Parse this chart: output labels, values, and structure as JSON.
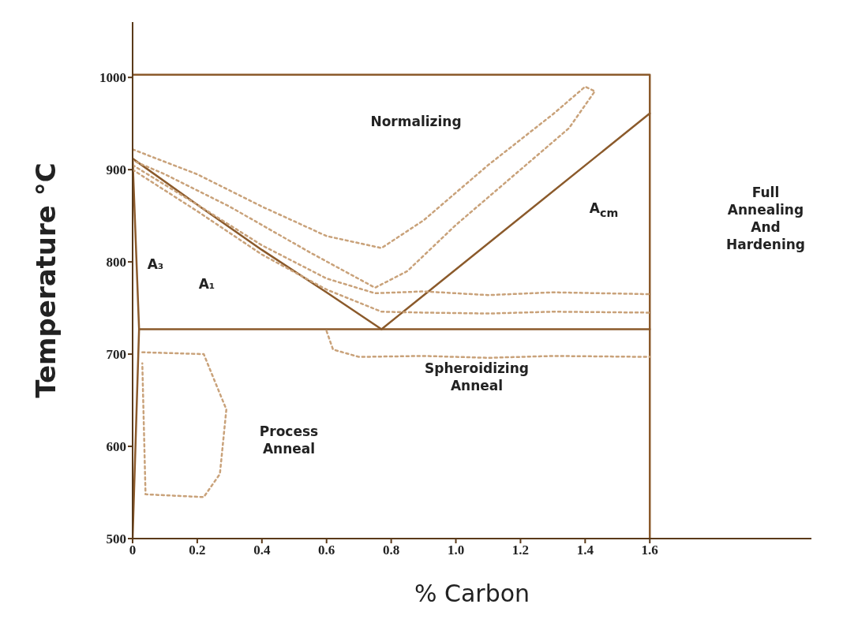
{
  "chart_data": {
    "type": "line",
    "xlabel": "% Carbon",
    "ylabel": "Temperature °C",
    "xlim": [
      0,
      2.1
    ],
    "ylim": [
      500,
      1060
    ],
    "xticks": [
      0,
      0.2,
      0.4,
      0.6,
      0.8,
      {
        "value": 1,
        "label": "1.0"
      },
      1.2,
      1.4,
      1.6
    ],
    "yticks": [
      500,
      600,
      700,
      800,
      900,
      1000
    ],
    "series": [
      {
        "color": "#8b5a2b",
        "line_style": "solid",
        "x": [
          0,
          1.6,
          1.6
        ],
        "values": [
          1003,
          1003,
          500
        ]
      },
      {
        "color": "#8b5a2b",
        "line_style": "solid",
        "x": [
          0,
          0.2,
          0.4,
          0.6,
          0.77
        ],
        "values": [
          912,
          862,
          813,
          767,
          727
        ]
      },
      {
        "color": "#8b5a2b",
        "line_style": "solid",
        "x": [
          0.77,
          1.6
        ],
        "values": [
          727,
          961
        ]
      },
      {
        "color": "#8b5a2b",
        "line_style": "solid",
        "x": [
          0.02,
          1.6
        ],
        "values": [
          727,
          727
        ]
      },
      {
        "color": "#8b5a2b",
        "line_style": "solid",
        "x": [
          0,
          0.02,
          0
        ],
        "values": [
          912,
          727,
          500
        ]
      },
      {
        "color": "#c9a27a",
        "line_style": "dotted",
        "x": [
          0,
          0.2,
          0.4,
          0.6,
          0.77,
          0.9,
          1.1,
          1.3,
          1.4,
          1.43,
          1.35,
          1.2,
          1.0,
          0.85,
          0.75,
          0.55,
          0.3,
          0.1,
          0
        ],
        "values": [
          922,
          895,
          860,
          828,
          815,
          845,
          905,
          960,
          990,
          985,
          945,
          900,
          840,
          790,
          772,
          810,
          860,
          895,
          910
        ]
      },
      {
        "color": "#c9a27a",
        "line_style": "dotted",
        "x": [
          0,
          0.2,
          0.4,
          0.6,
          0.75,
          0.9,
          1.1,
          1.3,
          1.6
        ],
        "values": [
          905,
          862,
          818,
          782,
          766,
          768,
          764,
          767,
          765
        ]
      },
      {
        "color": "#c9a27a",
        "line_style": "dotted",
        "x": [
          0,
          0.2,
          0.4,
          0.6,
          0.77,
          0.9,
          1.1,
          1.3,
          1.6
        ],
        "values": [
          900,
          855,
          808,
          770,
          746,
          745,
          744,
          746,
          745
        ]
      },
      {
        "color": "#c9a27a",
        "line_style": "dotted",
        "x": [
          0.6,
          0.62,
          0.7,
          0.9,
          1.1,
          1.3,
          1.6
        ],
        "values": [
          725,
          705,
          697,
          698,
          696,
          698,
          697
        ]
      },
      {
        "color": "#c9a27a",
        "line_style": "dotted",
        "x": [
          0.03,
          0.22,
          0.29,
          0.27,
          0.22,
          0.04,
          0.03
        ],
        "values": [
          702,
          700,
          640,
          570,
          545,
          548,
          690
        ]
      }
    ],
    "annotations": [
      "Normalizing",
      "A₃",
      "A₁",
      "A$_{cm}$",
      "Full Annealing And Hardening",
      "Spheroidizing Anneal",
      "Process Anneal"
    ]
  }
}
